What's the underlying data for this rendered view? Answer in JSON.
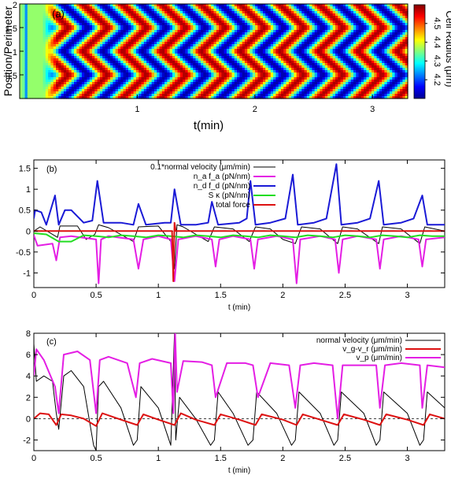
{
  "chart_data": [
    {
      "type": "heatmap",
      "panel_label": "(a)",
      "xlabel": "t(min)",
      "ylabel": "Position/Perimeter",
      "xlim": [
        0,
        3.3
      ],
      "ylim": [
        0,
        2
      ],
      "xticks": [
        "1",
        "2",
        "3"
      ],
      "yticks": [
        "0.5",
        "1",
        "1.5",
        "2"
      ],
      "colorbar": {
        "label": "Cell Radius (μm)",
        "range": [
          4.1,
          4.6
        ],
        "ticks": [
          "4.2",
          "4.3",
          "4.4",
          "4.5"
        ],
        "colormap": "jet"
      },
      "waves": {
        "initial_band_t": 0.05,
        "onset_t": 0.2,
        "period_min": 0.334,
        "wavelength_perimeter": 1.0
      }
    },
    {
      "type": "line",
      "panel_label": "(b)",
      "xlabel": "t (min)",
      "xlim": [
        0,
        3.3
      ],
      "ylim": [
        -1.35,
        1.7
      ],
      "xticks": [
        "0",
        "0.5",
        "1",
        "1.5",
        "2",
        "2.5",
        "3"
      ],
      "yticks": [
        "-1",
        "-0.5",
        "0",
        "0.5",
        "1",
        "1.5"
      ],
      "series": [
        {
          "name": "0.1*normal velocity (μm/min)",
          "color": "#000000",
          "x": [
            0,
            0.05,
            0.19,
            0.21,
            0.35,
            0.42,
            0.49,
            0.52,
            0.6,
            0.8,
            0.84,
            1.0,
            1.1,
            1.13,
            1.15,
            1.2,
            1.4,
            1.45,
            1.6,
            1.73,
            1.78,
            1.9,
            2.0,
            2.1,
            2.15,
            2.3,
            2.44,
            2.48,
            2.6,
            2.77,
            2.8,
            2.95,
            3.1,
            3.14,
            3.3
          ],
          "y": [
            0,
            0.1,
            -0.15,
            0.12,
            0.12,
            -0.2,
            -0.08,
            0.15,
            0.08,
            -0.25,
            0.1,
            0.12,
            -0.25,
            -0.9,
            0.15,
            0.1,
            -0.25,
            0.1,
            0.05,
            -0.25,
            0.1,
            0.05,
            -0.2,
            -0.3,
            0.1,
            0.05,
            -0.3,
            0.1,
            0.05,
            -0.3,
            0.1,
            0.05,
            -0.3,
            0.1,
            0
          ]
        },
        {
          "name": "n_a f_a (pN/nm)",
          "color": "#e41ee4",
          "x": [
            0,
            0.03,
            0.15,
            0.18,
            0.21,
            0.3,
            0.5,
            0.52,
            0.54,
            0.6,
            0.8,
            0.84,
            0.88,
            1.0,
            1.1,
            1.13,
            1.16,
            1.3,
            1.43,
            1.46,
            1.49,
            1.6,
            1.74,
            1.77,
            1.8,
            1.95,
            2.08,
            2.11,
            2.14,
            2.3,
            2.42,
            2.45,
            2.48,
            2.6,
            2.75,
            2.78,
            2.81,
            2.95,
            3.09,
            3.12,
            3.15,
            3.3
          ],
          "y": [
            -0.1,
            -0.35,
            -0.3,
            -0.7,
            -0.15,
            -0.12,
            -0.2,
            -1.25,
            -0.2,
            -0.12,
            -0.2,
            -0.9,
            -0.2,
            -0.12,
            -0.2,
            -1.2,
            -0.2,
            -0.12,
            -0.2,
            -0.85,
            -0.2,
            -0.12,
            -0.2,
            -0.9,
            -0.2,
            -0.12,
            -0.2,
            -1.25,
            -0.2,
            -0.12,
            -0.2,
            -1.0,
            -0.2,
            -0.12,
            -0.2,
            -0.9,
            -0.2,
            -0.12,
            -0.2,
            -0.85,
            -0.2,
            -0.15
          ]
        },
        {
          "name": "n_d f_d (pN/nm)",
          "color": "#1a1ad6",
          "x": [
            0,
            0.01,
            0.06,
            0.1,
            0.17,
            0.2,
            0.25,
            0.3,
            0.4,
            0.47,
            0.51,
            0.56,
            0.7,
            0.8,
            0.84,
            0.9,
            1.05,
            1.1,
            1.13,
            1.18,
            1.3,
            1.4,
            1.43,
            1.48,
            1.65,
            1.71,
            1.74,
            1.78,
            1.9,
            2.02,
            2.08,
            2.12,
            2.25,
            2.35,
            2.43,
            2.47,
            2.6,
            2.7,
            2.77,
            2.81,
            2.95,
            3.05,
            3.12,
            3.16,
            3.3
          ],
          "y": [
            0.3,
            0.5,
            0.45,
            0.15,
            0.85,
            0.15,
            0.5,
            0.5,
            0.2,
            0.25,
            1.2,
            0.2,
            0.2,
            0.15,
            0.65,
            0.15,
            0.2,
            0.2,
            1.0,
            0.15,
            0.15,
            0.2,
            0.7,
            0.15,
            0.2,
            0.3,
            1.2,
            0.15,
            0.2,
            0.3,
            1.35,
            0.15,
            0.2,
            0.3,
            1.6,
            0.15,
            0.2,
            0.3,
            1.2,
            0.15,
            0.2,
            0.3,
            0.85,
            0.15,
            0.15
          ]
        },
        {
          "name": "S κ (pN/nm)",
          "color": "#22dd22",
          "x": [
            0,
            0.1,
            0.2,
            0.3,
            0.4,
            0.5,
            0.6,
            0.7,
            0.8,
            0.9,
            1.0,
            1.1,
            1.2,
            1.3,
            1.4,
            1.5,
            1.6,
            1.7,
            1.8,
            1.9,
            2.0,
            2.1,
            2.2,
            2.3,
            2.4,
            2.5,
            2.6,
            2.7,
            2.8,
            2.9,
            3.0,
            3.1,
            3.2,
            3.3
          ],
          "y": [
            -0.05,
            -0.08,
            -0.25,
            -0.25,
            -0.1,
            -0.12,
            -0.15,
            -0.1,
            -0.12,
            -0.15,
            -0.1,
            -0.12,
            -0.15,
            -0.1,
            -0.12,
            -0.15,
            -0.1,
            -0.12,
            -0.15,
            -0.1,
            -0.12,
            -0.15,
            -0.1,
            -0.12,
            -0.15,
            -0.1,
            -0.12,
            -0.15,
            -0.1,
            -0.12,
            -0.15,
            -0.1,
            -0.12,
            -0.12
          ]
        },
        {
          "name": "total force",
          "color": "#dd1111",
          "x": [
            0,
            0.5,
            1.0,
            1.11,
            1.12,
            1.13,
            1.14,
            1.2,
            1.6,
            2.0,
            2.5,
            3.0,
            3.3
          ],
          "y": [
            0,
            0,
            0,
            0,
            -1.2,
            0.2,
            0,
            0,
            0,
            0,
            0,
            0,
            0
          ]
        }
      ]
    },
    {
      "type": "line",
      "panel_label": "(c)",
      "xlabel": "t (min)",
      "xlim": [
        0,
        3.3
      ],
      "ylim": [
        -3,
        8
      ],
      "xticks": [
        "0",
        "0.5",
        "1",
        "1.5",
        "2",
        "2.5",
        "3"
      ],
      "yticks": [
        "-2",
        "0",
        "2",
        "4",
        "6",
        "8"
      ],
      "series": [
        {
          "name": "normal velocity (μm/min)",
          "color": "#000000",
          "x": [
            0,
            0.02,
            0.08,
            0.15,
            0.18,
            0.2,
            0.24,
            0.3,
            0.4,
            0.48,
            0.5,
            0.52,
            0.56,
            0.7,
            0.8,
            0.83,
            0.86,
            1.0,
            1.1,
            1.13,
            1.14,
            1.17,
            1.3,
            1.42,
            1.45,
            1.48,
            1.6,
            1.72,
            1.76,
            1.79,
            1.95,
            2.07,
            2.1,
            2.13,
            2.3,
            2.41,
            2.44,
            2.47,
            2.65,
            2.75,
            2.78,
            2.81,
            3.0,
            3.1,
            3.13,
            3.16,
            3.3
          ],
          "y": [
            7.0,
            3.5,
            4.0,
            3.5,
            0.5,
            -1.0,
            4.0,
            4.5,
            3.0,
            -2.5,
            -3.0,
            3.0,
            3.5,
            1.0,
            -2.5,
            -2.0,
            3.0,
            1.0,
            -2.5,
            8.0,
            -2.0,
            2.0,
            0,
            -2.5,
            -2.0,
            2.5,
            0.5,
            -2.5,
            -2.0,
            2.5,
            0.5,
            -2.5,
            -2.0,
            2.5,
            0.5,
            -2.5,
            -2.0,
            2.5,
            0.5,
            -2.5,
            -2.0,
            2.5,
            0.5,
            -2.5,
            -2.0,
            2.5,
            1.0
          ]
        },
        {
          "name": "v_g-v_r (μm/min)",
          "color": "#dd1111",
          "x": [
            0,
            0.05,
            0.12,
            0.18,
            0.22,
            0.3,
            0.4,
            0.5,
            0.55,
            0.7,
            0.83,
            0.88,
            1.0,
            1.13,
            1.18,
            1.3,
            1.45,
            1.5,
            1.65,
            1.78,
            1.83,
            2.0,
            2.11,
            2.16,
            2.3,
            2.44,
            2.49,
            2.65,
            2.78,
            2.83,
            3.0,
            3.13,
            3.18,
            3.3
          ],
          "y": [
            0,
            0.5,
            0.4,
            -0.6,
            0.4,
            0.3,
            0,
            -0.7,
            0.5,
            -0.1,
            -0.6,
            0.4,
            -0.1,
            -0.6,
            0.5,
            -0.1,
            -0.6,
            0.4,
            -0.1,
            -0.6,
            0.4,
            -0.1,
            -0.6,
            0.4,
            -0.1,
            -0.6,
            0.4,
            -0.1,
            -0.6,
            0.4,
            -0.1,
            -0.6,
            0.4,
            0
          ]
        },
        {
          "name": "v_p (μm/min)",
          "color": "#e41ee4",
          "x": [
            0,
            0.02,
            0.08,
            0.17,
            0.2,
            0.24,
            0.35,
            0.45,
            0.5,
            0.53,
            0.6,
            0.75,
            0.82,
            0.85,
            0.95,
            1.1,
            1.12,
            1.135,
            1.15,
            1.2,
            1.35,
            1.43,
            1.46,
            1.55,
            1.7,
            1.76,
            1.8,
            1.9,
            2.05,
            2.1,
            2.14,
            2.25,
            2.4,
            2.44,
            2.48,
            2.6,
            2.75,
            2.78,
            2.82,
            2.95,
            3.1,
            3.12,
            3.16,
            3.3
          ],
          "y": [
            4.0,
            6.5,
            5.5,
            3.0,
            0.5,
            6.0,
            6.3,
            5.5,
            0.5,
            5.5,
            5.8,
            5.2,
            2.0,
            5.2,
            5.6,
            5.2,
            0.5,
            8.0,
            2.5,
            5.4,
            5.3,
            5.0,
            2.0,
            5.2,
            5.2,
            5.0,
            2.0,
            5.2,
            5.0,
            1.0,
            5.0,
            5.2,
            5.0,
            0,
            5.0,
            5.0,
            5.0,
            1.0,
            5.0,
            5.2,
            5.0,
            1.0,
            5.0,
            4.8
          ]
        }
      ]
    }
  ]
}
